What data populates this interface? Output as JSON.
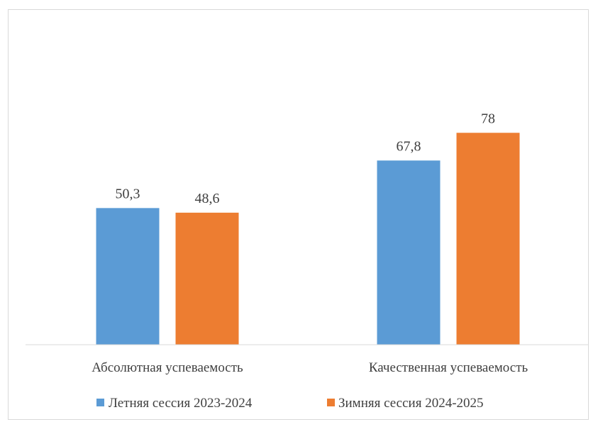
{
  "chart_data": {
    "type": "bar",
    "categories": [
      "Абсолютная успеваемость",
      "Качественная успеваемость"
    ],
    "series": [
      {
        "name": "Летняя сессия 2023-2024",
        "values": [
          50.3,
          67.8
        ],
        "labels": [
          "50,3",
          "67,8"
        ],
        "color": "#5b9bd5"
      },
      {
        "name": "Зимняя сессия 2024-2025",
        "values": [
          48.6,
          78
        ],
        "labels": [
          "48,6",
          "78"
        ],
        "color": "#ed7d31"
      }
    ],
    "ylim": [
      0,
      100
    ],
    "grid": false,
    "legend_position": "bottom",
    "axis_color": "#d9d9d9"
  }
}
